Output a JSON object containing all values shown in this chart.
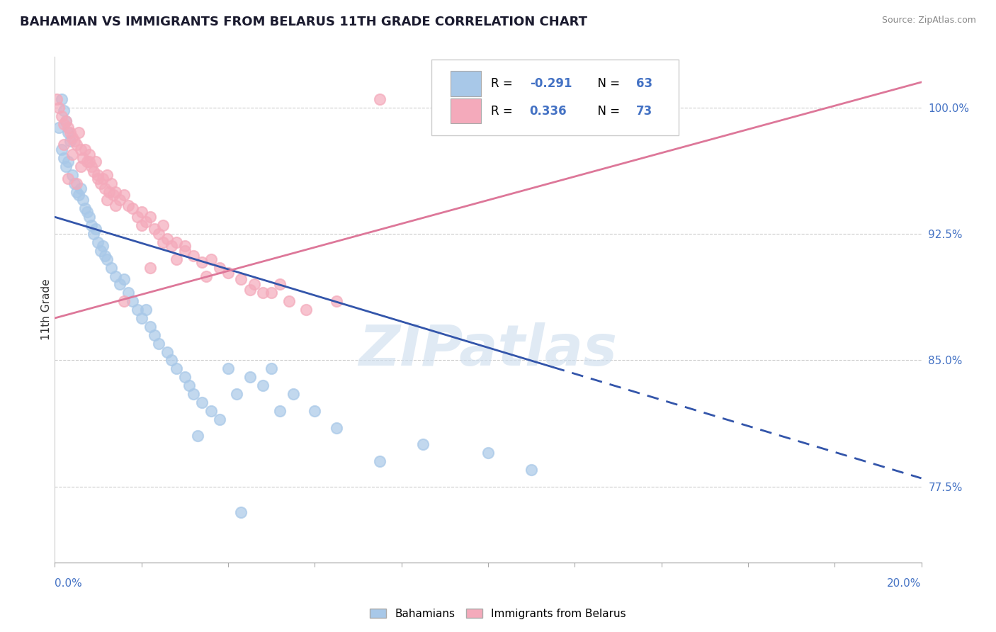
{
  "title": "BAHAMIAN VS IMMIGRANTS FROM BELARUS 11TH GRADE CORRELATION CHART",
  "source": "Source: ZipAtlas.com",
  "ylabel": "11th Grade",
  "legend_blue_label": "Bahamians",
  "legend_pink_label": "Immigrants from Belarus",
  "r_blue": -0.291,
  "n_blue": 63,
  "r_pink": 0.336,
  "n_pink": 73,
  "x_min": 0.0,
  "x_max": 20.0,
  "y_min": 73.0,
  "y_max": 103.0,
  "y_ticks": [
    77.5,
    85.0,
    92.5,
    100.0
  ],
  "watermark": "ZIPatlas",
  "blue_color": "#a8c8e8",
  "blue_line_color": "#3355aa",
  "pink_color": "#f4aabb",
  "pink_line_color": "#dd7799",
  "blue_solid_end_x": 11.5,
  "blue_line_y_at_0": 93.5,
  "blue_line_y_at_20": 78.0,
  "pink_line_y_at_0": 87.5,
  "pink_line_y_at_20": 101.5,
  "blue_scatter": [
    [
      0.15,
      100.5
    ],
    [
      0.2,
      99.8
    ],
    [
      0.25,
      99.2
    ],
    [
      0.3,
      98.5
    ],
    [
      0.35,
      98.0
    ],
    [
      0.1,
      98.8
    ],
    [
      0.15,
      97.5
    ],
    [
      0.2,
      97.0
    ],
    [
      0.25,
      96.5
    ],
    [
      0.3,
      96.8
    ],
    [
      0.4,
      96.0
    ],
    [
      0.45,
      95.5
    ],
    [
      0.5,
      95.0
    ],
    [
      0.55,
      94.8
    ],
    [
      0.6,
      95.2
    ],
    [
      0.65,
      94.5
    ],
    [
      0.7,
      94.0
    ],
    [
      0.75,
      93.8
    ],
    [
      0.8,
      93.5
    ],
    [
      0.85,
      93.0
    ],
    [
      0.9,
      92.5
    ],
    [
      0.95,
      92.8
    ],
    [
      1.0,
      92.0
    ],
    [
      1.05,
      91.5
    ],
    [
      1.1,
      91.8
    ],
    [
      1.15,
      91.2
    ],
    [
      1.2,
      91.0
    ],
    [
      1.3,
      90.5
    ],
    [
      1.4,
      90.0
    ],
    [
      1.5,
      89.5
    ],
    [
      1.6,
      89.8
    ],
    [
      1.7,
      89.0
    ],
    [
      1.8,
      88.5
    ],
    [
      1.9,
      88.0
    ],
    [
      2.0,
      87.5
    ],
    [
      2.1,
      88.0
    ],
    [
      2.2,
      87.0
    ],
    [
      2.3,
      86.5
    ],
    [
      2.4,
      86.0
    ],
    [
      2.6,
      85.5
    ],
    [
      2.7,
      85.0
    ],
    [
      2.8,
      84.5
    ],
    [
      3.0,
      84.0
    ],
    [
      3.1,
      83.5
    ],
    [
      3.2,
      83.0
    ],
    [
      3.4,
      82.5
    ],
    [
      3.6,
      82.0
    ],
    [
      3.8,
      81.5
    ],
    [
      4.0,
      84.5
    ],
    [
      4.2,
      83.0
    ],
    [
      4.5,
      84.0
    ],
    [
      4.8,
      83.5
    ],
    [
      5.0,
      84.5
    ],
    [
      5.2,
      82.0
    ],
    [
      5.5,
      83.0
    ],
    [
      6.0,
      82.0
    ],
    [
      6.5,
      81.0
    ],
    [
      8.5,
      80.0
    ],
    [
      10.0,
      79.5
    ],
    [
      11.0,
      78.5
    ],
    [
      3.3,
      80.5
    ],
    [
      4.3,
      76.0
    ],
    [
      7.5,
      79.0
    ]
  ],
  "pink_scatter": [
    [
      0.05,
      100.5
    ],
    [
      0.1,
      100.0
    ],
    [
      0.15,
      99.5
    ],
    [
      0.2,
      99.0
    ],
    [
      0.25,
      99.2
    ],
    [
      0.3,
      98.8
    ],
    [
      0.35,
      98.5
    ],
    [
      0.4,
      98.2
    ],
    [
      0.45,
      98.0
    ],
    [
      0.5,
      97.8
    ],
    [
      0.55,
      98.5
    ],
    [
      0.6,
      97.5
    ],
    [
      0.65,
      97.0
    ],
    [
      0.7,
      97.5
    ],
    [
      0.75,
      96.8
    ],
    [
      0.8,
      97.2
    ],
    [
      0.85,
      96.5
    ],
    [
      0.9,
      96.2
    ],
    [
      0.95,
      96.8
    ],
    [
      1.0,
      96.0
    ],
    [
      1.05,
      95.5
    ],
    [
      1.1,
      95.8
    ],
    [
      1.15,
      95.2
    ],
    [
      1.2,
      96.0
    ],
    [
      1.25,
      95.0
    ],
    [
      1.3,
      95.5
    ],
    [
      1.35,
      94.8
    ],
    [
      1.4,
      95.0
    ],
    [
      1.5,
      94.5
    ],
    [
      1.6,
      94.8
    ],
    [
      1.7,
      94.2
    ],
    [
      1.8,
      94.0
    ],
    [
      1.9,
      93.5
    ],
    [
      2.0,
      93.8
    ],
    [
      2.1,
      93.2
    ],
    [
      2.2,
      93.5
    ],
    [
      2.3,
      92.8
    ],
    [
      2.4,
      92.5
    ],
    [
      2.5,
      93.0
    ],
    [
      2.6,
      92.2
    ],
    [
      2.7,
      91.8
    ],
    [
      2.8,
      92.0
    ],
    [
      3.0,
      91.5
    ],
    [
      3.2,
      91.2
    ],
    [
      3.4,
      90.8
    ],
    [
      3.6,
      91.0
    ],
    [
      3.8,
      90.5
    ],
    [
      4.0,
      90.2
    ],
    [
      4.3,
      89.8
    ],
    [
      4.6,
      89.5
    ],
    [
      5.0,
      89.0
    ],
    [
      5.4,
      88.5
    ],
    [
      0.2,
      97.8
    ],
    [
      0.4,
      97.2
    ],
    [
      0.6,
      96.5
    ],
    [
      0.8,
      96.8
    ],
    [
      1.0,
      95.8
    ],
    [
      1.2,
      94.5
    ],
    [
      1.4,
      94.2
    ],
    [
      2.0,
      93.0
    ],
    [
      2.5,
      92.0
    ],
    [
      3.0,
      91.8
    ],
    [
      4.5,
      89.2
    ],
    [
      5.8,
      88.0
    ],
    [
      6.5,
      88.5
    ],
    [
      7.5,
      100.5
    ],
    [
      0.3,
      95.8
    ],
    [
      1.6,
      88.5
    ],
    [
      3.5,
      90.0
    ],
    [
      5.2,
      89.5
    ],
    [
      2.2,
      90.5
    ],
    [
      4.8,
      89.0
    ],
    [
      0.5,
      95.5
    ],
    [
      2.8,
      91.0
    ]
  ]
}
